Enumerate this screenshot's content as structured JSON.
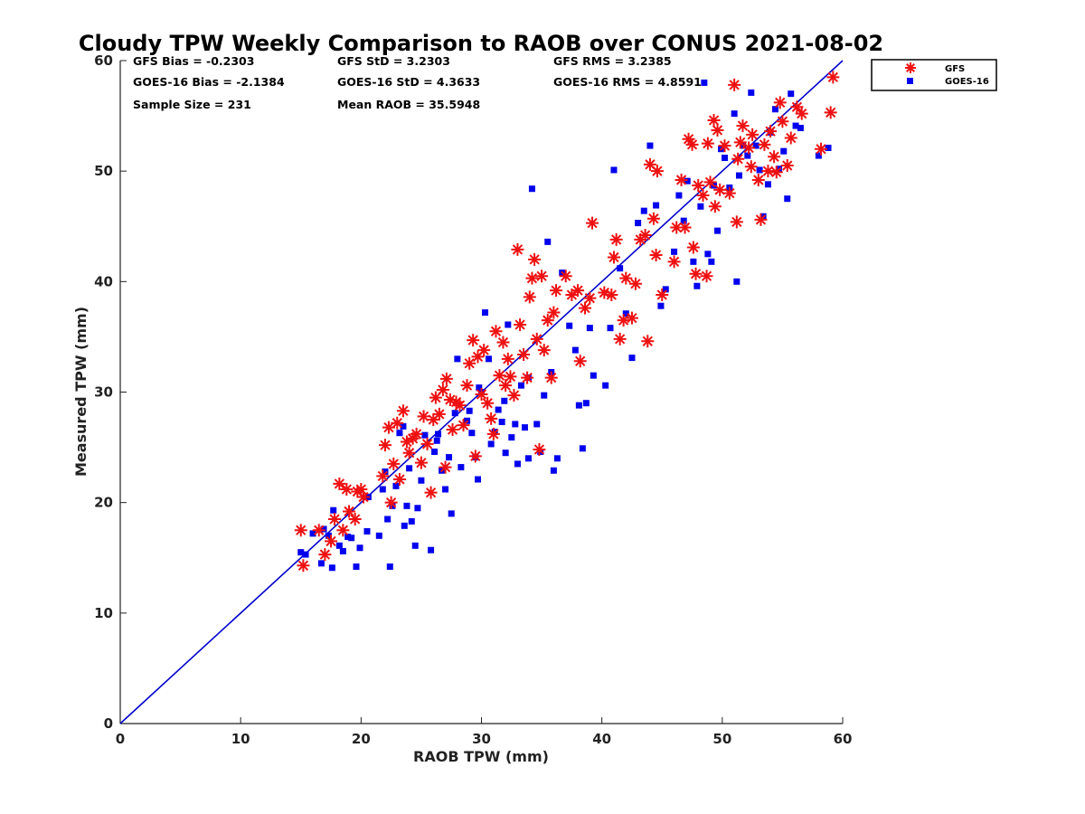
{
  "chart_data": {
    "type": "scatter",
    "title": "Cloudy TPW Weekly Comparison to RAOB over CONUS 2021-08-02",
    "xlabel": "RAOB TPW (mm)",
    "ylabel": "Measured TPW (mm)",
    "xlim": [
      0,
      60
    ],
    "ylim": [
      0,
      60
    ],
    "xticks": [
      "0",
      "10",
      "20",
      "30",
      "40",
      "50",
      "60"
    ],
    "yticks": [
      "0",
      "10",
      "20",
      "30",
      "40",
      "50",
      "60"
    ],
    "grid": false,
    "legend_position": "outside top-right",
    "stats": {
      "gfs_bias": "GFS Bias = -0.2303",
      "goes_bias": "GOES-16 Bias = -2.1384",
      "sample_size": "Sample Size = 231",
      "gfs_std": "GFS StD = 3.2303",
      "goes_std": "GOES-16 StD = 4.3633",
      "mean_raob": "Mean RAOB = 35.5948",
      "gfs_rms": "GFS RMS = 3.2385",
      "goes_rms": "GOES-16 RMS = 4.8591"
    },
    "reference_line": {
      "x": [
        0,
        60
      ],
      "y": [
        0,
        60
      ],
      "color": "#0000cc"
    },
    "series": [
      {
        "name": "GFS",
        "marker": "asterisk",
        "color": "#ee1111",
        "points": [
          [
            15,
            17.5
          ],
          [
            15.2,
            14.3
          ],
          [
            16.5,
            17.5
          ],
          [
            17,
            15.3
          ],
          [
            17.5,
            16.5
          ],
          [
            17.8,
            18.5
          ],
          [
            18.2,
            21.7
          ],
          [
            18.5,
            17.5
          ],
          [
            18.8,
            21.2
          ],
          [
            19,
            19.2
          ],
          [
            19.5,
            18.5
          ],
          [
            19.7,
            21
          ],
          [
            20.2,
            20.5
          ],
          [
            20,
            21.2
          ],
          [
            21.8,
            22.4
          ],
          [
            22,
            25.2
          ],
          [
            22.3,
            26.8
          ],
          [
            22.5,
            20
          ],
          [
            22.7,
            23.5
          ],
          [
            23,
            27.2
          ],
          [
            23.2,
            22.1
          ],
          [
            23.5,
            28.3
          ],
          [
            23.8,
            25.5
          ],
          [
            24,
            24.5
          ],
          [
            24.3,
            25.8
          ],
          [
            24.6,
            26.2
          ],
          [
            25,
            23.6
          ],
          [
            25.2,
            27.8
          ],
          [
            25.5,
            25.3
          ],
          [
            25.8,
            20.9
          ],
          [
            26,
            27.5
          ],
          [
            26.2,
            29.5
          ],
          [
            26.5,
            28
          ],
          [
            26.8,
            30.2
          ],
          [
            27,
            23.2
          ],
          [
            27.1,
            31.2
          ],
          [
            27.4,
            29.3
          ],
          [
            27.6,
            26.6
          ],
          [
            27.9,
            29.1
          ],
          [
            28.2,
            28.8
          ],
          [
            28.5,
            27
          ],
          [
            28.8,
            30.6
          ],
          [
            29,
            32.6
          ],
          [
            29.3,
            34.7
          ],
          [
            29.5,
            24.2
          ],
          [
            29.7,
            33.2
          ],
          [
            30,
            29.8
          ],
          [
            30.2,
            33.8
          ],
          [
            30.5,
            29
          ],
          [
            30.8,
            27.6
          ],
          [
            31,
            26.2
          ],
          [
            31.2,
            35.5
          ],
          [
            31.5,
            31.5
          ],
          [
            31.8,
            34.5
          ],
          [
            32,
            30.6
          ],
          [
            32.2,
            33
          ],
          [
            32.4,
            31.4
          ],
          [
            32.7,
            29.7
          ],
          [
            33,
            42.9
          ],
          [
            33.2,
            36.1
          ],
          [
            33.5,
            33.4
          ],
          [
            33.8,
            31.3
          ],
          [
            34,
            38.6
          ],
          [
            34.2,
            40.3
          ],
          [
            34.4,
            42
          ],
          [
            34.6,
            34.8
          ],
          [
            34.8,
            24.8
          ],
          [
            35,
            40.5
          ],
          [
            35.2,
            33.8
          ],
          [
            35.5,
            36.5
          ],
          [
            35.8,
            31.3
          ],
          [
            36,
            37.2
          ],
          [
            36.2,
            39.2
          ],
          [
            37,
            40.5
          ],
          [
            37.5,
            38.8
          ],
          [
            38,
            39.2
          ],
          [
            38.2,
            32.8
          ],
          [
            38.6,
            37.6
          ],
          [
            39,
            38.5
          ],
          [
            39.2,
            45.3
          ],
          [
            40.2,
            39
          ],
          [
            40.8,
            38.8
          ],
          [
            41,
            42.2
          ],
          [
            41.2,
            43.8
          ],
          [
            41.5,
            34.8
          ],
          [
            41.8,
            36.5
          ],
          [
            42,
            40.3
          ],
          [
            42.5,
            36.7
          ],
          [
            42.8,
            39.8
          ],
          [
            43.2,
            43.8
          ],
          [
            43.6,
            44.2
          ],
          [
            43.8,
            34.6
          ],
          [
            44,
            50.6
          ],
          [
            44.3,
            45.7
          ],
          [
            44.5,
            42.4
          ],
          [
            44.6,
            50
          ],
          [
            45,
            38.8
          ],
          [
            46,
            41.8
          ],
          [
            46.2,
            44.9
          ],
          [
            46.6,
            49.2
          ],
          [
            46.9,
            44.9
          ],
          [
            47.2,
            52.9
          ],
          [
            47.5,
            52.4
          ],
          [
            47.6,
            43.1
          ],
          [
            47.8,
            40.7
          ],
          [
            48,
            48.7
          ],
          [
            48.4,
            47.8
          ],
          [
            48.7,
            40.5
          ],
          [
            48.8,
            52.5
          ],
          [
            49,
            49
          ],
          [
            49.3,
            54.6
          ],
          [
            49.4,
            46.8
          ],
          [
            49.6,
            53.7
          ],
          [
            49.8,
            48.3
          ],
          [
            50.2,
            52.3
          ],
          [
            50.6,
            48
          ],
          [
            51,
            57.8
          ],
          [
            51.2,
            45.4
          ],
          [
            51.3,
            51.1
          ],
          [
            51.5,
            52.6
          ],
          [
            51.7,
            54.1
          ],
          [
            52.2,
            52.1
          ],
          [
            52.4,
            50.4
          ],
          [
            52.5,
            53.3
          ],
          [
            53,
            49.2
          ],
          [
            53.2,
            45.6
          ],
          [
            53.5,
            52.4
          ],
          [
            53.8,
            50
          ],
          [
            54,
            53.6
          ],
          [
            54.3,
            51.3
          ],
          [
            54.5,
            49.9
          ],
          [
            54.8,
            56.2
          ],
          [
            55,
            54.5
          ],
          [
            55.4,
            50.5
          ],
          [
            55.7,
            53
          ],
          [
            56.2,
            55.8
          ],
          [
            56.6,
            55.2
          ],
          [
            58.2,
            52
          ],
          [
            59,
            55.3
          ],
          [
            59.2,
            58.5
          ]
        ]
      },
      {
        "name": "GOES-16",
        "marker": "square",
        "color": "#0000ee",
        "points": [
          [
            15,
            15.5
          ],
          [
            15.4,
            15.3
          ],
          [
            16,
            17.2
          ],
          [
            16.7,
            14.5
          ],
          [
            16.9,
            17.6
          ],
          [
            17.3,
            17
          ],
          [
            17.6,
            14.1
          ],
          [
            17.7,
            19.3
          ],
          [
            18.2,
            16.1
          ],
          [
            18.5,
            15.6
          ],
          [
            18.9,
            16.9
          ],
          [
            19.2,
            16.8
          ],
          [
            19.6,
            14.2
          ],
          [
            19.9,
            15.9
          ],
          [
            20.5,
            17.4
          ],
          [
            21.5,
            17
          ],
          [
            21.8,
            21.2
          ],
          [
            22,
            22.8
          ],
          [
            22.2,
            18.5
          ],
          [
            22.4,
            14.2
          ],
          [
            22.6,
            19.7
          ],
          [
            22.9,
            21.5
          ],
          [
            23.2,
            26.3
          ],
          [
            23.6,
            17.9
          ],
          [
            23.8,
            19.7
          ],
          [
            24,
            23.1
          ],
          [
            24.2,
            18.3
          ],
          [
            24.5,
            16.1
          ],
          [
            24.7,
            19.5
          ],
          [
            25,
            22
          ],
          [
            25.3,
            26.1
          ],
          [
            25.8,
            15.7
          ],
          [
            26.1,
            24.6
          ],
          [
            26.4,
            26.2
          ],
          [
            26.7,
            22.9
          ],
          [
            27,
            21.2
          ],
          [
            27.3,
            24.1
          ],
          [
            27.5,
            19
          ],
          [
            27.8,
            28.1
          ],
          [
            28,
            33
          ],
          [
            28.3,
            23.2
          ],
          [
            28.8,
            27.4
          ],
          [
            29,
            28.3
          ],
          [
            29.2,
            26.3
          ],
          [
            29.5,
            24.1
          ],
          [
            29.7,
            22.1
          ],
          [
            30,
            30
          ],
          [
            30.3,
            37.2
          ],
          [
            30.6,
            33
          ],
          [
            30.8,
            25.3
          ],
          [
            31.1,
            26.4
          ],
          [
            31.4,
            28.4
          ],
          [
            31.7,
            27.3
          ],
          [
            32,
            24.5
          ],
          [
            32.2,
            36.1
          ],
          [
            32.5,
            25.9
          ],
          [
            32.8,
            27.1
          ],
          [
            33,
            23.5
          ],
          [
            33.3,
            30.6
          ],
          [
            33.6,
            26.8
          ],
          [
            33.9,
            24
          ],
          [
            34.2,
            48.4
          ],
          [
            34.6,
            27.1
          ],
          [
            34.9,
            24.6
          ],
          [
            35.2,
            29.7
          ],
          [
            35.5,
            43.6
          ],
          [
            35.8,
            31.8
          ],
          [
            36,
            22.9
          ],
          [
            36.3,
            24
          ],
          [
            36.7,
            40.8
          ],
          [
            37.3,
            36
          ],
          [
            37.8,
            33.8
          ],
          [
            38.1,
            28.8
          ],
          [
            38.4,
            24.9
          ],
          [
            38.7,
            29
          ],
          [
            39,
            35.8
          ],
          [
            39.3,
            31.5
          ],
          [
            40.3,
            30.6
          ],
          [
            40.7,
            35.8
          ],
          [
            41,
            50.1
          ],
          [
            41.5,
            41.2
          ],
          [
            42,
            37.1
          ],
          [
            42.5,
            33.1
          ],
          [
            43,
            45.3
          ],
          [
            43.5,
            46.4
          ],
          [
            44,
            52.3
          ],
          [
            44.5,
            46.9
          ],
          [
            44.9,
            37.8
          ],
          [
            45.3,
            39.3
          ],
          [
            46,
            42.7
          ],
          [
            46.4,
            47.8
          ],
          [
            46.8,
            45.5
          ],
          [
            47.1,
            49.1
          ],
          [
            47.6,
            41.8
          ],
          [
            47.9,
            39.6
          ],
          [
            48.2,
            46.8
          ],
          [
            48.5,
            58
          ],
          [
            48.8,
            42.5
          ],
          [
            49.1,
            41.8
          ],
          [
            49.3,
            48.7
          ],
          [
            49.6,
            44.6
          ],
          [
            49.9,
            52
          ],
          [
            50.2,
            51.2
          ],
          [
            50.6,
            48.5
          ],
          [
            51,
            55.2
          ],
          [
            51.2,
            40
          ],
          [
            51.4,
            49.6
          ],
          [
            51.7,
            52.3
          ],
          [
            52.1,
            51.4
          ],
          [
            52.4,
            57.1
          ],
          [
            52.8,
            52.3
          ],
          [
            53.1,
            50.1
          ],
          [
            53.4,
            45.9
          ],
          [
            53.8,
            48.8
          ],
          [
            54,
            53.5
          ],
          [
            54.4,
            55.6
          ],
          [
            54.7,
            50.2
          ],
          [
            55.1,
            51.8
          ],
          [
            55.4,
            47.5
          ],
          [
            55.7,
            57
          ],
          [
            56.1,
            54.1
          ],
          [
            56.5,
            53.9
          ],
          [
            58,
            51.4
          ],
          [
            58.8,
            52.1
          ],
          [
            20.6,
            20.5
          ],
          [
            23.5,
            26.9
          ],
          [
            26.3,
            25.6
          ],
          [
            29.8,
            30.4
          ],
          [
            31.9,
            29.2
          ],
          [
            33.9,
            31.3
          ]
        ]
      }
    ]
  }
}
